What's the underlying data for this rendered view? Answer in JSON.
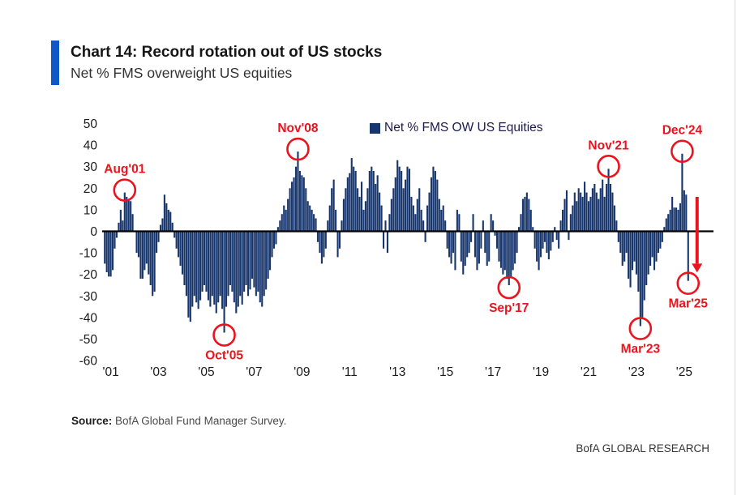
{
  "header": {
    "title": "Chart 14: Record rotation out of US stocks",
    "subtitle": "Net % FMS overweight US equities",
    "accent_color": "#1057c8"
  },
  "legend": {
    "label": "Net % FMS OW US Equities",
    "marker_color": "#18366e"
  },
  "footer": {
    "source_label": "Source:",
    "source_text": " BofA Global Fund Manager Survey.",
    "brand": "BofA GLOBAL RESEARCH"
  },
  "chart_data": {
    "type": "bar",
    "title": "Net % FMS overweight US equities",
    "xlabel": "",
    "ylabel": "Net %",
    "ylim": [
      -60,
      50
    ],
    "ytick_step": 10,
    "grid": false,
    "legend_position": "top-center",
    "bar_color": "#18366e",
    "annotation_color": "#ea141e",
    "start_month": "2000-10",
    "end_month": "2025-03",
    "x_ticks": [
      {
        "label": "'01",
        "index": 3
      },
      {
        "label": "'03",
        "index": 27
      },
      {
        "label": "'05",
        "index": 51
      },
      {
        "label": "'07",
        "index": 75
      },
      {
        "label": "'09",
        "index": 99
      },
      {
        "label": "'11",
        "index": 123
      },
      {
        "label": "'13",
        "index": 147
      },
      {
        "label": "'15",
        "index": 171
      },
      {
        "label": "'17",
        "index": 195
      },
      {
        "label": "'19",
        "index": 219
      },
      {
        "label": "'21",
        "index": 243
      },
      {
        "label": "'23",
        "index": 267
      },
      {
        "label": "'25",
        "index": 291
      }
    ],
    "values": [
      -15,
      -19,
      -21,
      -21,
      -18,
      -8,
      -3,
      4,
      10,
      5,
      18,
      16,
      15,
      14,
      8,
      0,
      -10,
      -12,
      -22,
      -22,
      -18,
      -15,
      -20,
      -25,
      -30,
      -28,
      -10,
      -5,
      3,
      6,
      17,
      13,
      10,
      9,
      4,
      -3,
      -8,
      -12,
      -16,
      -20,
      -25,
      -30,
      -40,
      -42,
      -35,
      -30,
      -33,
      -36,
      -32,
      -28,
      -25,
      -28,
      -32,
      -35,
      -30,
      -34,
      -38,
      -33,
      -30,
      -36,
      -47,
      -35,
      -30,
      -25,
      -28,
      -33,
      -38,
      -35,
      -30,
      -34,
      -28,
      -25,
      -30,
      -27,
      -22,
      -26,
      -30,
      -28,
      -33,
      -35,
      -30,
      -27,
      -22,
      -18,
      -12,
      -8,
      -6,
      2,
      5,
      8,
      12,
      10,
      15,
      20,
      23,
      25,
      30,
      37,
      28,
      26,
      25,
      20,
      14,
      12,
      10,
      8,
      6,
      -5,
      -10,
      -15,
      -12,
      -8,
      5,
      12,
      20,
      24,
      10,
      -12,
      -8,
      5,
      15,
      20,
      25,
      27,
      34,
      30,
      28,
      20,
      16,
      23,
      10,
      14,
      20,
      28,
      30,
      28,
      22,
      26,
      18,
      12,
      -8,
      5,
      -10,
      8,
      15,
      20,
      25,
      33,
      30,
      28,
      20,
      24,
      30,
      29,
      16,
      12,
      8,
      15,
      20,
      10,
      5,
      -5,
      12,
      18,
      25,
      30,
      28,
      24,
      15,
      10,
      12,
      5,
      -8,
      -12,
      -15,
      -10,
      -18,
      10,
      8,
      -14,
      -20,
      -16,
      -12,
      -10,
      -5,
      8,
      -12,
      -18,
      -15,
      -8,
      5,
      -10,
      -16,
      -14,
      8,
      5,
      -2,
      -8,
      -14,
      -17,
      -20,
      -18,
      -22,
      -25,
      -21,
      -18,
      -15,
      -10,
      2,
      8,
      15,
      16,
      18,
      15,
      10,
      2,
      -8,
      -14,
      -18,
      -12,
      -8,
      -5,
      -10,
      -13,
      -9,
      -5,
      2,
      -4,
      -8,
      5,
      10,
      15,
      19,
      -4,
      8,
      12,
      18,
      14,
      20,
      18,
      16,
      23,
      18,
      14,
      16,
      20,
      22,
      18,
      15,
      20,
      24,
      16,
      22,
      29,
      22,
      18,
      12,
      5,
      -5,
      -10,
      -16,
      -14,
      -10,
      -22,
      -26,
      -18,
      -14,
      -20,
      -28,
      -44,
      -40,
      -32,
      -25,
      -20,
      -16,
      -12,
      -18,
      -14,
      -10,
      -8,
      -5,
      2,
      6,
      8,
      10,
      16,
      11,
      11,
      10,
      13,
      36,
      19,
      17,
      -23
    ],
    "annotations": [
      {
        "label": "Aug'01",
        "index": 10,
        "value": 18,
        "label_pos": "above"
      },
      {
        "label": "Oct'05",
        "index": 60,
        "value": -47,
        "label_pos": "below"
      },
      {
        "label": "Nov'08",
        "index": 97,
        "value": 37,
        "label_pos": "above"
      },
      {
        "label": "Sep'17",
        "index": 203,
        "value": -25,
        "label_pos": "below"
      },
      {
        "label": "Nov'21",
        "index": 253,
        "value": 29,
        "label_pos": "above"
      },
      {
        "label": "Mar'23",
        "index": 269,
        "value": -44,
        "label_pos": "below"
      },
      {
        "label": "Dec'24",
        "index": 290,
        "value": 36,
        "label_pos": "above"
      },
      {
        "label": "Mar'25",
        "index": 293,
        "value": -23,
        "label_pos": "below"
      }
    ],
    "arrow": {
      "from_value": 16,
      "to_value": -15
    }
  }
}
